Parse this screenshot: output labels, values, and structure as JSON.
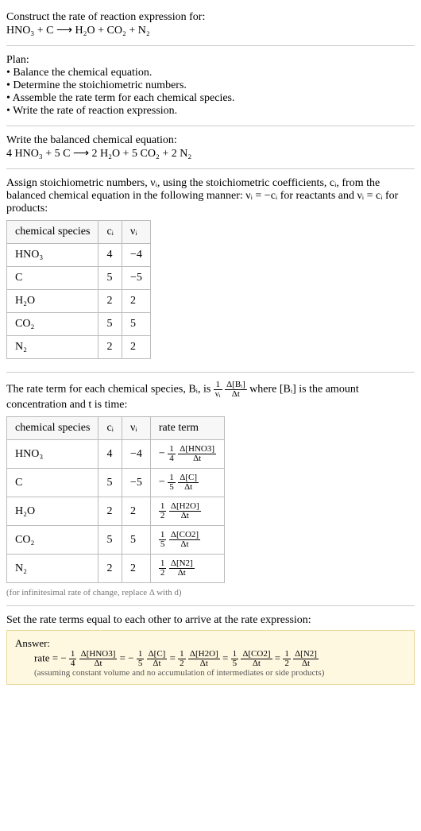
{
  "intro": {
    "line1": "Construct the rate of reaction expression for:",
    "line2": "HNO₃ + C ⟶ H₂O + CO₂ + N₂"
  },
  "plan": {
    "heading": "Plan:",
    "items": [
      "• Balance the chemical equation.",
      "• Determine the stoichiometric numbers.",
      "• Assemble the rate term for each chemical species.",
      "• Write the rate of reaction expression."
    ]
  },
  "balanced": {
    "line1": "Write the balanced chemical equation:",
    "line2": "4 HNO₃ + 5 C ⟶ 2 H₂O + 5 CO₂ + 2 N₂"
  },
  "stoich": {
    "text1": "Assign stoichiometric numbers, νᵢ, using the stoichiometric coefficients, cᵢ, from the balanced chemical equation in the following manner: νᵢ = −cᵢ for reactants and νᵢ = cᵢ for products:",
    "headers": [
      "chemical species",
      "cᵢ",
      "νᵢ"
    ],
    "rows": [
      [
        "HNO₃",
        "4",
        "−4"
      ],
      [
        "C",
        "5",
        "−5"
      ],
      [
        "H₂O",
        "2",
        "2"
      ],
      [
        "CO₂",
        "5",
        "5"
      ],
      [
        "N₂",
        "2",
        "2"
      ]
    ],
    "table_style": {
      "border_color": "#bbb",
      "header_bg": "#f7f7f7",
      "cell_padding": "6px 10px",
      "font_size": 14
    }
  },
  "rateterm": {
    "text1a": "The rate term for each chemical species, Bᵢ, is ",
    "text1b": " where [Bᵢ] is the amount concentration and t is time:",
    "frac_outer_num": "1",
    "frac_outer_den": "νᵢ",
    "frac_inner_num": "Δ[Bᵢ]",
    "frac_inner_den": "Δt",
    "headers": [
      "chemical species",
      "cᵢ",
      "νᵢ",
      "rate term"
    ],
    "rows": [
      {
        "sp": "HNO₃",
        "c": "4",
        "v": "−4",
        "sign": "−",
        "fn": "1",
        "fd": "4",
        "dn": "Δ[HNO3]",
        "dd": "Δt"
      },
      {
        "sp": "C",
        "c": "5",
        "v": "−5",
        "sign": "−",
        "fn": "1",
        "fd": "5",
        "dn": "Δ[C]",
        "dd": "Δt"
      },
      {
        "sp": "H₂O",
        "c": "2",
        "v": "2",
        "sign": "",
        "fn": "1",
        "fd": "2",
        "dn": "Δ[H2O]",
        "dd": "Δt"
      },
      {
        "sp": "CO₂",
        "c": "5",
        "v": "5",
        "sign": "",
        "fn": "1",
        "fd": "5",
        "dn": "Δ[CO2]",
        "dd": "Δt"
      },
      {
        "sp": "N₂",
        "c": "2",
        "v": "2",
        "sign": "",
        "fn": "1",
        "fd": "2",
        "dn": "Δ[N2]",
        "dd": "Δt"
      }
    ],
    "note": "(for infinitesimal rate of change, replace Δ with d)",
    "table_style": {
      "border_color": "#bbb",
      "header_bg": "#f7f7f7",
      "cell_padding": "6px 10px",
      "font_size": 14
    }
  },
  "final": {
    "text": "Set the rate terms equal to each other to arrive at the rate expression:"
  },
  "answer": {
    "label": "Answer:",
    "prefix": "rate = −",
    "terms": [
      {
        "sign": "",
        "fn": "1",
        "fd": "4",
        "dn": "Δ[HNO3]",
        "dd": "Δt"
      },
      {
        "sign": "−",
        "fn": "1",
        "fd": "5",
        "dn": "Δ[C]",
        "dd": "Δt"
      },
      {
        "sign": "",
        "fn": "1",
        "fd": "2",
        "dn": "Δ[H2O]",
        "dd": "Δt"
      },
      {
        "sign": "",
        "fn": "1",
        "fd": "5",
        "dn": "Δ[CO2]",
        "dd": "Δt"
      },
      {
        "sign": "",
        "fn": "1",
        "fd": "2",
        "dn": "Δ[N2]",
        "dd": "Δt"
      }
    ],
    "eq": " = ",
    "note": "(assuming constant volume and no accumulation of intermediates or side products)",
    "box_style": {
      "background_color": "#fff8e1",
      "border_color": "#e8d898",
      "font_size": 13
    }
  },
  "colors": {
    "text": "#000000",
    "hr": "#cccccc",
    "small_text": "#777777"
  }
}
